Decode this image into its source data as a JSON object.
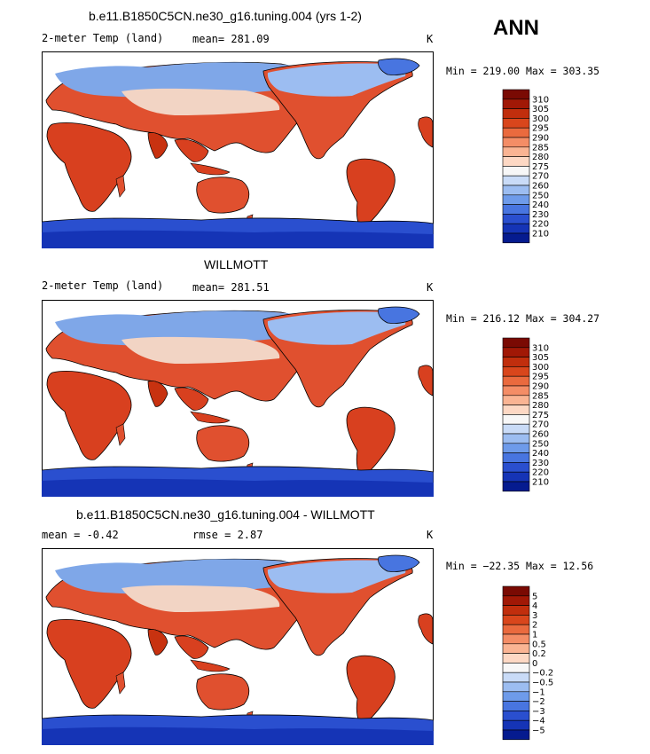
{
  "season": "ANN",
  "land_color": "#e0502f",
  "panels": [
    {
      "id": "model",
      "title": "b.e11.B1850C5CN.ne30_g16.tuning.004 (yrs 1-2)",
      "left": "2-meter Temp (land)",
      "center": "mean= 281.09",
      "right": "K",
      "minmax": "Min = 219.00 Max = 303.35",
      "colorbar": {
        "labels": [
          "310",
          "305",
          "300",
          "295",
          "290",
          "285",
          "280",
          "275",
          "270",
          "260",
          "250",
          "240",
          "230",
          "220",
          "210"
        ],
        "colors": [
          "#7a0a03",
          "#a11806",
          "#c12e0d",
          "#d9461c",
          "#ea6a3e",
          "#f48d66",
          "#fab493",
          "#fdd8c4",
          "#f7f7f7",
          "#c9dbf7",
          "#9cbdf1",
          "#6e9bea",
          "#4875e0",
          "#2a4fcf",
          "#1534b6",
          "#051b8f"
        ]
      }
    },
    {
      "id": "obs",
      "title": "WILLMOTT",
      "left": "2-meter Temp (land)",
      "center": "mean= 281.51",
      "right": "K",
      "minmax": "Min = 216.12 Max = 304.27",
      "colorbar": {
        "labels": [
          "310",
          "305",
          "300",
          "295",
          "290",
          "285",
          "280",
          "275",
          "270",
          "260",
          "250",
          "240",
          "230",
          "220",
          "210"
        ],
        "colors": [
          "#7a0a03",
          "#a11806",
          "#c12e0d",
          "#d9461c",
          "#ea6a3e",
          "#f48d66",
          "#fab493",
          "#fdd8c4",
          "#f7f7f7",
          "#c9dbf7",
          "#9cbdf1",
          "#6e9bea",
          "#4875e0",
          "#2a4fcf",
          "#1534b6",
          "#051b8f"
        ]
      }
    },
    {
      "id": "diff",
      "title": "b.e11.B1850C5CN.ne30_g16.tuning.004 - WILLMOTT",
      "left": "mean =   -0.42",
      "center": "rmse =    2.87",
      "right": "K",
      "minmax": "Min = −22.35 Max =  12.56",
      "colorbar": {
        "labels": [
          "5",
          "4",
          "3",
          "2",
          "1",
          "0.5",
          "0.2",
          "0",
          "−0.2",
          "−0.5",
          "−1",
          "−2",
          "−3",
          "−4",
          "−5"
        ],
        "colors": [
          "#7a0a03",
          "#a11806",
          "#c12e0d",
          "#d9461c",
          "#ea6a3e",
          "#f48d66",
          "#fab493",
          "#fdd8c4",
          "#f7f7f7",
          "#c9dbf7",
          "#9cbdf1",
          "#6e9bea",
          "#4875e0",
          "#2a4fcf",
          "#1534b6",
          "#051b8f"
        ]
      }
    }
  ]
}
